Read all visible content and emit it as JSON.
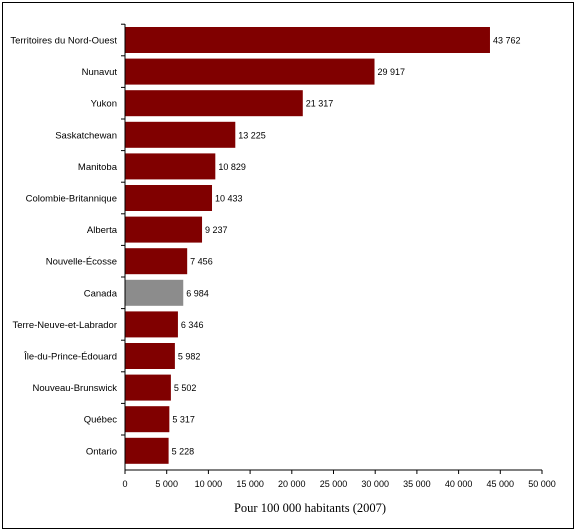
{
  "chart_data": {
    "type": "bar",
    "orientation": "horizontal",
    "title": "",
    "xlabel": "Pour 100 000 habitants (2007)",
    "ylabel": "",
    "xlim": [
      0,
      50000
    ],
    "xticks": [
      0,
      5000,
      10000,
      15000,
      20000,
      25000,
      30000,
      35000,
      40000,
      45000,
      50000
    ],
    "xtick_labels": [
      "0",
      "5 000",
      "10 000",
      "15 000",
      "20 000",
      "25 000",
      "30 000",
      "35 000",
      "40 000",
      "45 000",
      "50 000"
    ],
    "grid": false,
    "legend": "none",
    "categories": [
      "Territoires du Nord-Ouest",
      "Nunavut",
      "Yukon",
      "Saskatchewan",
      "Manitoba",
      "Colombie-Britannique",
      "Alberta",
      "Nouvelle-Écosse",
      "Canada",
      "Terre-Neuve-et-Labrador",
      "Île-du-Prince-Édouard",
      "Nouveau-Brunswick",
      "Québec",
      "Ontario"
    ],
    "values": [
      43762,
      29917,
      21317,
      13225,
      10829,
      10433,
      9237,
      7456,
      6984,
      6346,
      5982,
      5502,
      5317,
      5228
    ],
    "value_labels": [
      "43 762",
      "29 917",
      "21 317",
      "13 225",
      "10 829",
      "10 433",
      "9 237",
      "7 456",
      "6 984",
      "6 346",
      "5 982",
      "5 502",
      "5 317",
      "5 228"
    ],
    "highlight_category": "Canada",
    "colors": {
      "bar": "#800000",
      "highlight": "#8c8c8c",
      "axis": "#000000"
    }
  }
}
